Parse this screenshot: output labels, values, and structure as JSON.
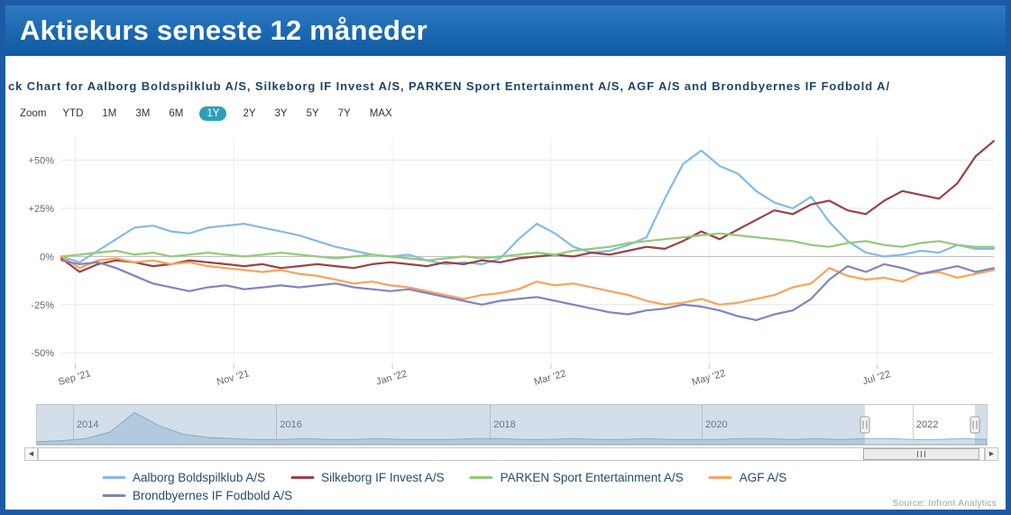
{
  "header": {
    "title": "Aktiekurs seneste 12 måneder"
  },
  "chart": {
    "title": "ck Chart for Aalborg Boldspilklub A/S, Silkeborg IF Invest A/S, PARKEN Sport Entertainment A/S, AGF A/S and Brondbyernes IF Fodbold A/",
    "zoom": {
      "label": "Zoom",
      "buttons": [
        "YTD",
        "1M",
        "3M",
        "6M",
        "1Y",
        "2Y",
        "3Y",
        "5Y",
        "7Y",
        "MAX"
      ],
      "selected": "1Y",
      "selected_color": "#2e9fb7"
    },
    "source": "Source: Infront Analytics"
  },
  "icons": {
    "left_arrow": "◀",
    "right_arrow": "▶"
  },
  "colors": {
    "frame_border": "#1c5aa5",
    "header_bar": "#1763ab",
    "zero_line": "#b9b9b9",
    "gridline": "#e6e6e6",
    "navigator_mask": "rgba(115,155,190,0.32)"
  },
  "chart_data": {
    "type": "line",
    "unit": "percent_change",
    "yaxis": {
      "range": [
        -56,
        62
      ],
      "ticks": [
        {
          "value": 50,
          "label": "+50%"
        },
        {
          "value": 25,
          "label": "+25%"
        },
        {
          "value": 0,
          "label": "0%"
        },
        {
          "value": -25,
          "label": "-25%"
        },
        {
          "value": -50,
          "label": "-50%"
        }
      ]
    },
    "xaxis": {
      "ticks": [
        {
          "f": 0.015,
          "label": "Sep '21"
        },
        {
          "f": 0.185,
          "label": "Nov '21"
        },
        {
          "f": 0.355,
          "label": "Jan '22"
        },
        {
          "f": 0.525,
          "label": "Mar '22"
        },
        {
          "f": 0.695,
          "label": "May '22"
        },
        {
          "f": 0.875,
          "label": "Jul '22"
        }
      ]
    },
    "series": [
      {
        "name": "Aalborg Boldspilklub A/S",
        "color": "#86b9e8",
        "values": [
          0,
          -3,
          3,
          9,
          15,
          16,
          13,
          12,
          15,
          16,
          17,
          15,
          13,
          11,
          8,
          5,
          3,
          1,
          0,
          1,
          -2,
          -4,
          -3,
          -4,
          -1,
          9,
          17,
          12,
          5,
          2,
          3,
          6,
          10,
          30,
          48,
          55,
          47,
          43,
          34,
          28,
          25,
          31,
          18,
          8,
          2,
          0,
          1,
          3,
          2,
          6,
          4,
          4
        ]
      },
      {
        "name": "Silkeborg IF Invest A/S",
        "color": "#9c4146",
        "values": [
          -1,
          -8,
          -4,
          -2,
          -3,
          -5,
          -4,
          -2,
          -3,
          -4,
          -5,
          -4,
          -6,
          -5,
          -4,
          -5,
          -6,
          -4,
          -3,
          -4,
          -5,
          -3,
          -4,
          -2,
          -3,
          -1,
          0,
          1,
          0,
          2,
          1,
          3,
          5,
          4,
          8,
          13,
          9,
          14,
          19,
          24,
          22,
          27,
          29,
          24,
          22,
          29,
          34,
          32,
          30,
          38,
          52,
          60
        ]
      },
      {
        "name": "PARKEN Sport Entertainment A/S",
        "color": "#94ca77",
        "values": [
          0,
          1,
          2,
          3,
          1,
          2,
          0,
          1,
          2,
          1,
          0,
          1,
          2,
          1,
          0,
          -1,
          0,
          1,
          0,
          -1,
          -2,
          -1,
          0,
          -1,
          0,
          1,
          2,
          1,
          3,
          4,
          5,
          7,
          8,
          9,
          10,
          11,
          12,
          11,
          10,
          9,
          8,
          6,
          5,
          7,
          8,
          6,
          5,
          7,
          8,
          6,
          5,
          5
        ]
      },
      {
        "name": "AGF A/S",
        "color": "#f7a35c",
        "values": [
          0,
          -6,
          -2,
          -1,
          -3,
          -2,
          -4,
          -3,
          -5,
          -6,
          -7,
          -8,
          -7,
          -9,
          -10,
          -12,
          -14,
          -13,
          -15,
          -16,
          -18,
          -20,
          -22,
          -20,
          -19,
          -17,
          -13,
          -15,
          -14,
          -16,
          -18,
          -20,
          -23,
          -25,
          -24,
          -22,
          -25,
          -24,
          -22,
          -20,
          -16,
          -14,
          -6,
          -10,
          -12,
          -11,
          -13,
          -9,
          -8,
          -11,
          -9,
          -7
        ]
      },
      {
        "name": "Brondbyernes IF Fodbold A/S",
        "color": "#8085c0",
        "values": [
          -2,
          -4,
          -3,
          -6,
          -10,
          -14,
          -16,
          -18,
          -16,
          -15,
          -17,
          -16,
          -15,
          -16,
          -15,
          -14,
          -16,
          -17,
          -18,
          -17,
          -19,
          -21,
          -23,
          -25,
          -23,
          -22,
          -21,
          -23,
          -25,
          -27,
          -29,
          -30,
          -28,
          -27,
          -25,
          -26,
          -28,
          -31,
          -33,
          -30,
          -28,
          -22,
          -12,
          -5,
          -8,
          -4,
          -6,
          -9,
          -7,
          -5,
          -8,
          -6
        ]
      }
    ],
    "navigator": {
      "years": [
        {
          "label": "2014",
          "f": 0.038
        },
        {
          "label": "2016",
          "f": 0.252
        },
        {
          "label": "2018",
          "f": 0.477
        },
        {
          "label": "2020",
          "f": 0.7
        },
        {
          "label": "2022",
          "f": 0.922
        }
      ],
      "selected_range": [
        0.872,
        0.988
      ],
      "spark": [
        1,
        2,
        4,
        10,
        28,
        16,
        8,
        5,
        4,
        3,
        3,
        4,
        3,
        3,
        4,
        3,
        3,
        3,
        4,
        4,
        3,
        3,
        4,
        3,
        3,
        4,
        3,
        3,
        3,
        4,
        4,
        3,
        4,
        3,
        4,
        4,
        3,
        3,
        4,
        3
      ]
    },
    "scrollbar": {
      "thumb": [
        0.872,
        0.995
      ]
    }
  }
}
